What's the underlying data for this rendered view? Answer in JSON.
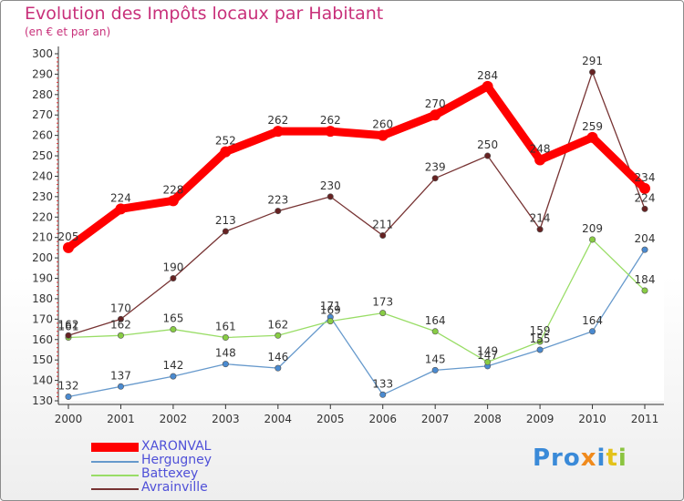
{
  "header": {
    "title": "Evolution des Impôts locaux par Habitant",
    "subtitle": "(en € et par an)"
  },
  "logo": {
    "parts": [
      {
        "text": "Pro",
        "color": "#3a8ad8"
      },
      {
        "text": "x",
        "color": "#f08a1c"
      },
      {
        "text": "i",
        "color": "#3a8ad8"
      },
      {
        "text": "t",
        "color": "#e3c21b"
      },
      {
        "text": "i",
        "color": "#8bc43f"
      }
    ]
  },
  "legend": [
    {
      "label": "XARONVAL",
      "color": "#ff0000"
    },
    {
      "label": "Hergugney",
      "color": "#6699cc"
    },
    {
      "label": "Battexey",
      "color": "#99dd66"
    },
    {
      "label": "Avrainville",
      "color": "#773333"
    }
  ],
  "chart_data": {
    "type": "line",
    "title": "Evolution des Impôts locaux par Habitant",
    "subtitle": "(en € et par an)",
    "xlabel": "",
    "ylabel": "",
    "x": [
      "2000",
      "2001",
      "2002",
      "2003",
      "2004",
      "2005",
      "2006",
      "2007",
      "2008",
      "2009",
      "2010",
      "2011"
    ],
    "ylim": [
      130,
      300
    ],
    "yticks": [
      130,
      140,
      150,
      160,
      170,
      180,
      190,
      200,
      210,
      220,
      230,
      240,
      250,
      260,
      270,
      280,
      290,
      300
    ],
    "grid": false,
    "legend_position": "bottom-left",
    "series": [
      {
        "name": "XARONVAL",
        "color": "#ff0000",
        "marker": "#ff0000",
        "values": [
          205,
          224,
          228,
          252,
          262,
          262,
          260,
          270,
          284,
          248,
          259,
          234
        ],
        "labels": [
          "205",
          "224",
          "228",
          "252",
          "262",
          "262",
          "260",
          "270",
          "284",
          "248",
          "259",
          "234"
        ]
      },
      {
        "name": "Hergugney",
        "color": "#6699cc",
        "marker": "#4a8ad0",
        "values": [
          132,
          137,
          142,
          148,
          146,
          171,
          133,
          145,
          147,
          155,
          164,
          204
        ],
        "labels": [
          "132",
          "137",
          "142",
          "148",
          "146",
          "171",
          "133",
          "145",
          "147",
          "155",
          "164",
          "204"
        ]
      },
      {
        "name": "Battexey",
        "color": "#99dd66",
        "marker": "#88cc44",
        "values": [
          161,
          162,
          165,
          161,
          162,
          169,
          173,
          164,
          149,
          159,
          209,
          184
        ],
        "labels": [
          "161",
          "162",
          "165",
          "161",
          "162",
          "169",
          "173",
          "164",
          "149",
          "159",
          "209",
          "184"
        ]
      },
      {
        "name": "Avrainville",
        "color": "#773333",
        "marker": "#662222",
        "values": [
          162,
          170,
          190,
          213,
          223,
          230,
          211,
          239,
          250,
          214,
          291,
          224
        ],
        "labels": [
          "162",
          "170",
          "190",
          "213",
          "223",
          "230",
          "211",
          "239",
          "250",
          "214",
          "291",
          "224"
        ]
      }
    ]
  }
}
